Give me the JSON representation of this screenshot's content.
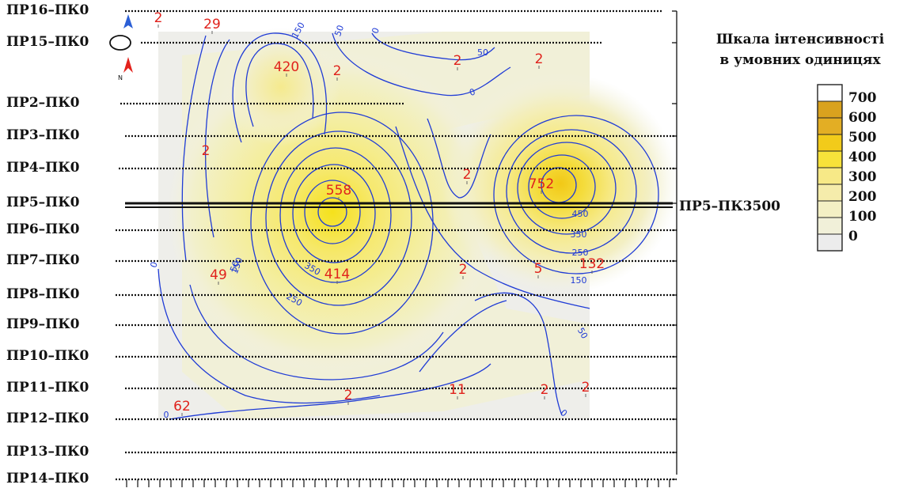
{
  "profiles": [
    {
      "label": "ПР16–ПК0"
    },
    {
      "label": "ПР15–ПК0"
    },
    {
      "label": "ПР2–ПК0"
    },
    {
      "label": "ПР3–ПК0"
    },
    {
      "label": "ПР4–ПК0"
    },
    {
      "label": "ПР5–ПК0"
    },
    {
      "label": "ПР6–ПК0"
    },
    {
      "label": "ПР7–ПК0"
    },
    {
      "label": "ПР8–ПК0"
    },
    {
      "label": "ПР9–ПК0"
    },
    {
      "label": "ПР10–ПК0"
    },
    {
      "label": "ПР11–ПК0"
    },
    {
      "label": "ПР12–ПК0"
    },
    {
      "label": "ПР13–ПК0"
    },
    {
      "label": "ПР14–ПК0"
    }
  ],
  "highlighted_profile_end_label": "ПР5–ПК3500",
  "legend": {
    "title_line1": "Шкала інтенсивності",
    "title_line2": "в умовних одиницях",
    "scale": [
      "700",
      "600",
      "500",
      "400",
      "300",
      "200",
      "100",
      "0"
    ],
    "colors": [
      "#ffffff",
      "#d9a21e",
      "#e3ae24",
      "#f2cb1a",
      "#f7e23a",
      "#f7e987",
      "#f5ecab",
      "#f3efc4",
      "#f1f0d9",
      "#ececec"
    ]
  },
  "point_values": [
    "2",
    "29",
    "420",
    "2",
    "2",
    "2",
    "2",
    "2",
    "558",
    "752",
    "49",
    "414",
    "2",
    "5",
    "132",
    "62",
    "2",
    "11",
    "2",
    "2"
  ],
  "contour_labels": [
    "150",
    "50",
    "0",
    "0",
    "50",
    "450",
    "350",
    "250",
    "150",
    "0",
    "50",
    "150",
    "350",
    "250",
    "50",
    "0",
    "0"
  ],
  "north_arrow": {
    "letter": "N",
    "icon": "north-arrow-icon"
  },
  "colors": {
    "contour": "#1f3bd6",
    "value_text": "#e0221c",
    "profile_line": "#111111"
  }
}
